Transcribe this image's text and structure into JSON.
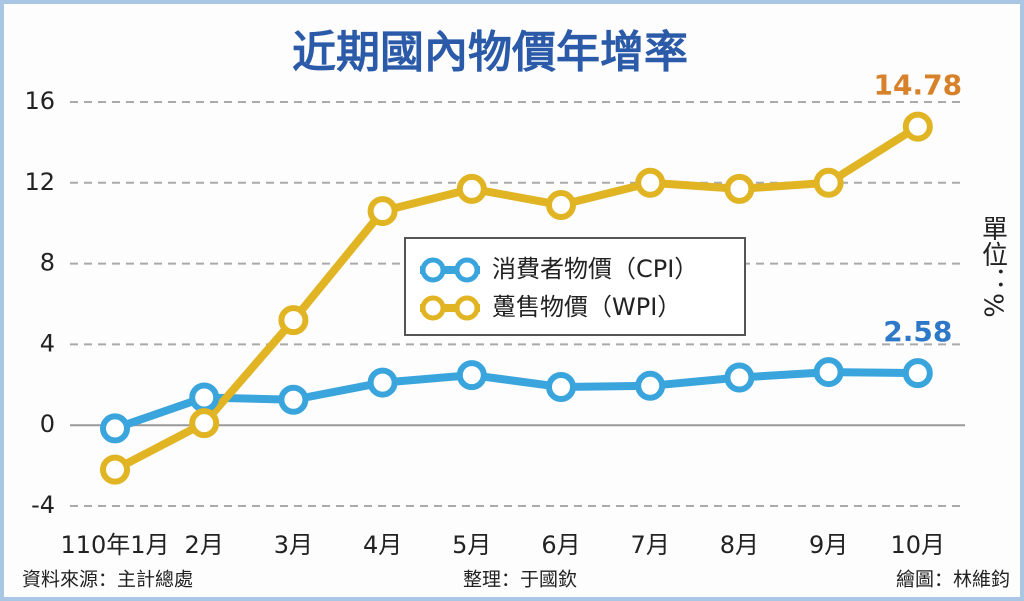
{
  "chart_data": {
    "type": "line",
    "title": "近期國內物價年增率",
    "categories": [
      "110年1月",
      "2月",
      "3月",
      "4月",
      "5月",
      "6月",
      "7月",
      "8月",
      "9月",
      "10月"
    ],
    "series": [
      {
        "name": "消費者物價（CPI）",
        "color": "#3aa5dc",
        "label_color": "#2d78c8",
        "values": [
          -0.16,
          1.37,
          1.26,
          2.11,
          2.48,
          1.89,
          1.95,
          2.36,
          2.63,
          2.58
        ],
        "value_labels": [
          null,
          null,
          null,
          null,
          null,
          null,
          null,
          null,
          null,
          "2.58"
        ]
      },
      {
        "name": "躉售物價（WPI）",
        "color": "#e0b422",
        "label_color": "#d7822a",
        "values": [
          -2.2,
          0.1,
          5.2,
          10.6,
          11.7,
          10.9,
          12.0,
          11.7,
          12.0,
          14.78
        ],
        "value_labels": [
          null,
          null,
          null,
          null,
          null,
          null,
          null,
          null,
          null,
          "14.78"
        ]
      }
    ],
    "ylim": [
      -4,
      16
    ],
    "yticks": [
      -4,
      0,
      4,
      8,
      12,
      16
    ],
    "grid": true,
    "unit": "單位：%",
    "source": "資料來源：主計總處",
    "editor": "整理：于國欽",
    "graphic": "繪圖：林維鈞"
  }
}
